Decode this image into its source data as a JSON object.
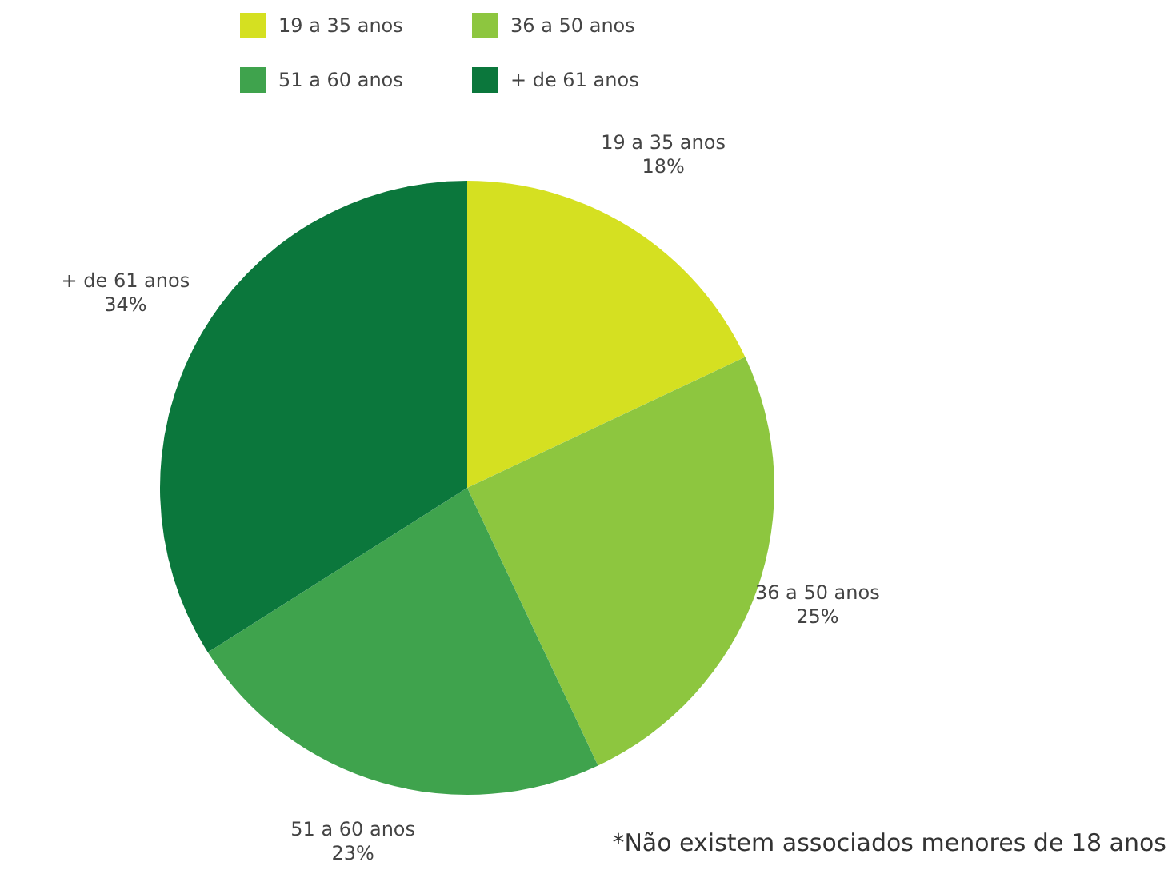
{
  "chart_data": {
    "type": "pie",
    "categories": [
      "19 a 35 anos",
      "36 a 50 anos",
      "51 a 60 anos",
      "+ de 61 anos"
    ],
    "values": [
      18,
      25,
      23,
      34
    ],
    "colors": [
      "#d5e021",
      "#8dc63f",
      "#3fa34d",
      "#0b773c"
    ],
    "value_labels": [
      "18%",
      "25%",
      "23%",
      "34%"
    ],
    "legend": "top",
    "annotations": [
      "*Não existem associados menores de 18 anos"
    ]
  }
}
